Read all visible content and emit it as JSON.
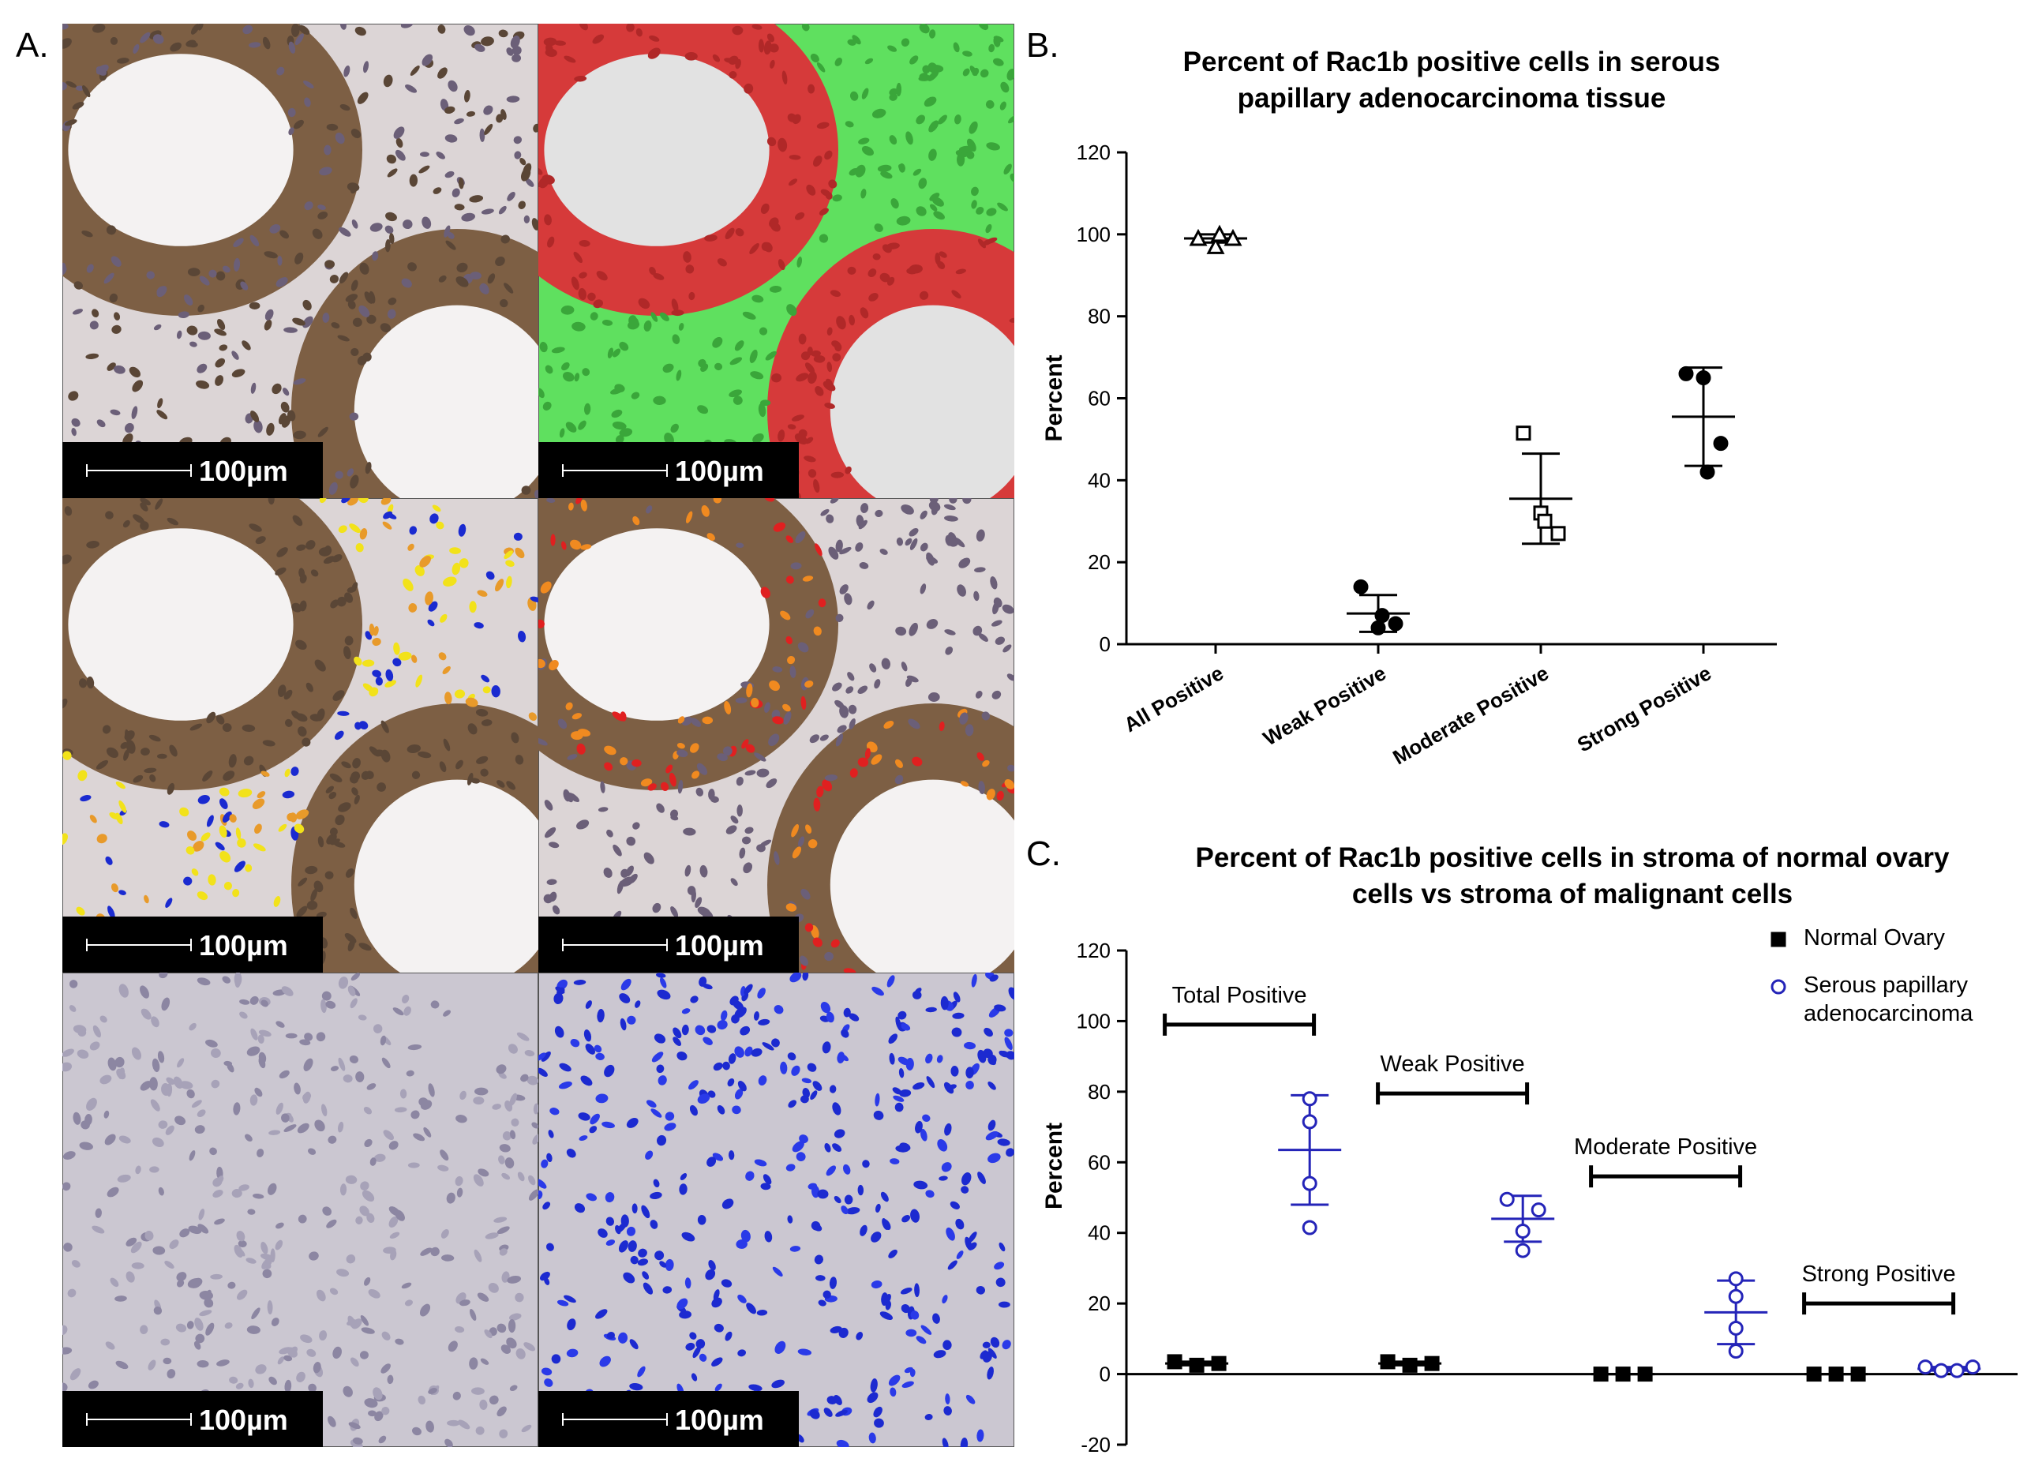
{
  "panel_labels": [
    "A.",
    "B.",
    "C."
  ],
  "micrographs": [
    {
      "scale_label": "100µm"
    },
    {
      "scale_label": "100µm"
    },
    {
      "scale_label": "100µm"
    },
    {
      "scale_label": "100µm"
    },
    {
      "scale_label": "100µm"
    },
    {
      "scale_label": "100µm"
    }
  ],
  "chart_data": [
    {
      "type": "scatter",
      "title": [
        "Percent of Rac1b positive cells in serous",
        "papillary adenocarcinoma tissue"
      ],
      "y_label": "Percent",
      "categories": [
        "All Positive",
        "Weak Positive",
        "Moderate Positive",
        "Strong Positive"
      ],
      "groups": [
        {
          "marker": "open-triangle",
          "values": [
            99,
            97,
            99,
            100
          ],
          "mean": 99,
          "sd": 1
        },
        {
          "marker": "circle",
          "values": [
            14,
            4,
            5,
            7
          ],
          "mean": 7.5,
          "sd": 4.5
        },
        {
          "marker": "open-square",
          "values": [
            51.5,
            32,
            27,
            30
          ],
          "mean": 35.5,
          "sd": 11
        },
        {
          "marker": "circle",
          "values": [
            66,
            65,
            49,
            42
          ],
          "mean": 55.5,
          "sd": 12
        }
      ],
      "color": "#000000",
      "ylim": [
        0,
        120
      ],
      "yticks": [
        0,
        20,
        40,
        60,
        80,
        100,
        120
      ]
    },
    {
      "type": "scatter",
      "title": [
        "Percent of Rac1b positive cells in stroma of normal ovary",
        "cells vs stroma of malignant cells"
      ],
      "y_label": "Percent",
      "categories": [
        "Total Positive",
        "Weak Positive",
        "Moderate Positive",
        "Strong Positive"
      ],
      "bracket_y": [
        99,
        79.5,
        56,
        20
      ],
      "series": [
        {
          "name": "Normal Ovary",
          "color": "#000000",
          "marker": "square",
          "groups": [
            {
              "values": [
                3.5,
                2.5,
                3
              ],
              "mean": 3,
              "sd": 0.5
            },
            {
              "values": [
                3.5,
                2.5,
                3
              ],
              "mean": 3,
              "sd": 0.5
            },
            {
              "values": [
                0,
                0,
                0
              ],
              "mean": 0,
              "sd": 0
            },
            {
              "values": [
                0,
                0,
                0
              ],
              "mean": 0,
              "sd": 0
            }
          ]
        },
        {
          "name": "Serous papillary adenocarcinoma",
          "color": "#2424b8",
          "marker": "open-circle",
          "groups": [
            {
              "values": [
                78,
                71.5,
                54,
                41.5
              ],
              "mean": 63.5,
              "sd": 15.5
            },
            {
              "values": [
                49.5,
                46.5,
                40.5,
                35
              ],
              "mean": 44,
              "sd": 6.5
            },
            {
              "values": [
                27,
                22,
                13,
                6.5
              ],
              "mean": 17.5,
              "sd": 9
            },
            {
              "values": [
                2,
                1,
                1,
                2
              ],
              "mean": 1.5,
              "sd": 0.5
            }
          ]
        }
      ],
      "ylim": [
        -20,
        120
      ],
      "yticks": [
        -20,
        0,
        20,
        40,
        60,
        80,
        100,
        120
      ]
    }
  ]
}
